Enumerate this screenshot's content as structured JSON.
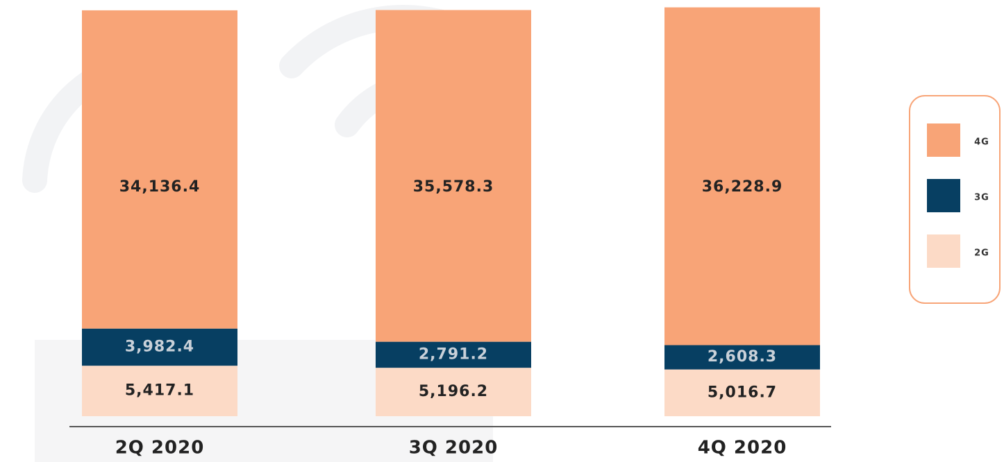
{
  "chart_data": {
    "type": "stacked-bar",
    "categories": [
      "2Q 2020",
      "3Q 2020",
      "4Q 2020"
    ],
    "series": [
      {
        "name": "2G",
        "color": "#fcdac6",
        "values": [
          5417.1,
          5196.2,
          5016.7
        ],
        "value_labels": [
          "5,417.1",
          "5,196.2",
          "5,016.7"
        ]
      },
      {
        "name": "3G",
        "color": "#073f62",
        "values": [
          3982.4,
          2791.2,
          2608.3
        ],
        "value_labels": [
          "3,982.4",
          "2,791.2",
          "2,608.3"
        ]
      },
      {
        "name": "4G",
        "color": "#f8a477",
        "values": [
          34136.4,
          35578.3,
          36228.9
        ],
        "value_labels": [
          "34,136.4",
          "35,578.3",
          "36,228.9"
        ]
      }
    ]
  }
}
